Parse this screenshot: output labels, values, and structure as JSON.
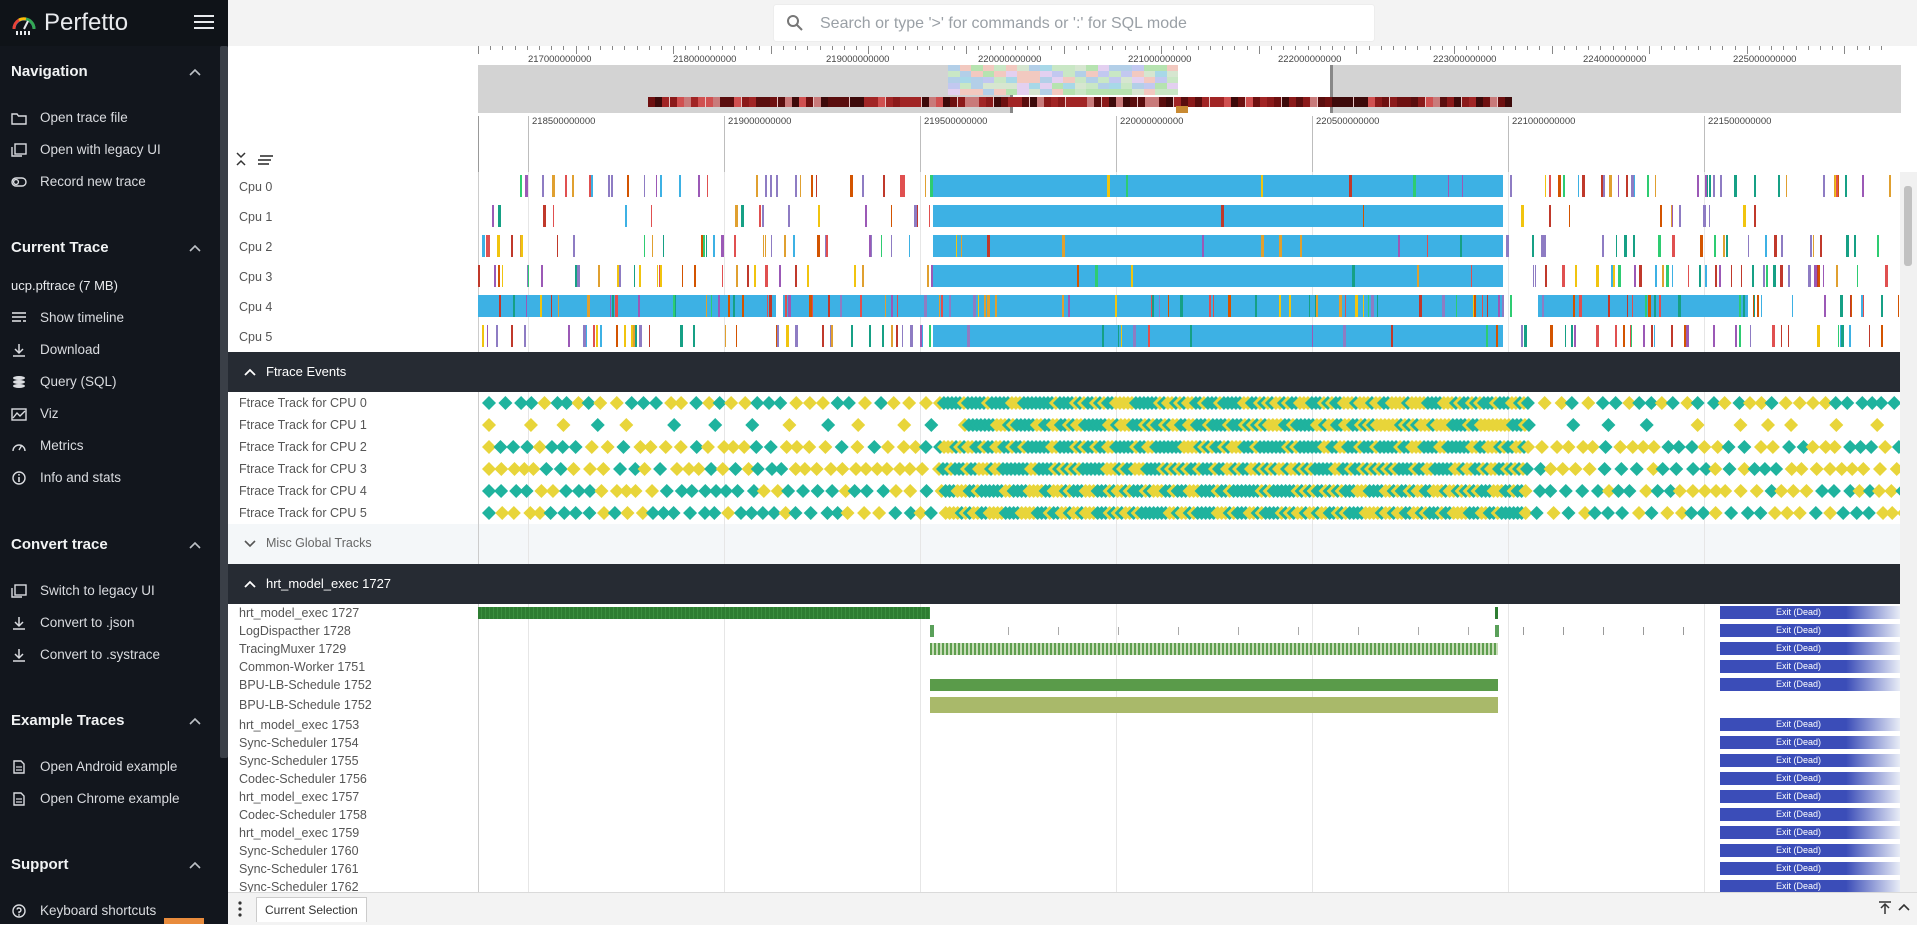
{
  "app": {
    "title": "Perfetto",
    "colors": {
      "sidebar_bg": "#12161d",
      "group_header_bg": "#262b33",
      "cpu_blue": "#3db1e4",
      "ftrace_teal": "#1fb39e",
      "ftrace_yellow": "#e8d53a",
      "thread_green": "#2e7d32",
      "thread_light_green": "#a9b96a",
      "exit_dead": "#3b4db8"
    }
  },
  "sidebar": {
    "sections": [
      {
        "title": "Navigation",
        "items": [
          {
            "label": "Open trace file",
            "icon": "folder-open-icon"
          },
          {
            "label": "Open with legacy UI",
            "icon": "filter-none-icon"
          },
          {
            "label": "Record new trace",
            "icon": "toggle-icon"
          }
        ]
      },
      {
        "title": "Current Trace",
        "trace_name": "ucp.pftrace (7 MB)",
        "items": [
          {
            "label": "Show timeline",
            "icon": "timeline-icon"
          },
          {
            "label": "Download",
            "icon": "download-icon"
          },
          {
            "label": "Query (SQL)",
            "icon": "database-icon"
          },
          {
            "label": "Viz",
            "icon": "chart-icon"
          },
          {
            "label": "Metrics",
            "icon": "speedometer-icon"
          },
          {
            "label": "Info and stats",
            "icon": "info-icon"
          }
        ]
      },
      {
        "title": "Convert trace",
        "items": [
          {
            "label": "Switch to legacy UI",
            "icon": "filter-none-icon"
          },
          {
            "label": "Convert to .json",
            "icon": "download-icon"
          },
          {
            "label": "Convert to .systrace",
            "icon": "download-icon"
          }
        ]
      },
      {
        "title": "Example Traces",
        "items": [
          {
            "label": "Open Android example",
            "icon": "document-icon"
          },
          {
            "label": "Open Chrome example",
            "icon": "document-icon"
          }
        ]
      },
      {
        "title": "Support",
        "items": [
          {
            "label": "Keyboard shortcuts",
            "icon": "help-icon"
          }
        ]
      }
    ]
  },
  "search": {
    "placeholder": "Search or type '>' for commands or ':' for SQL mode",
    "value": ""
  },
  "overview": {
    "ticks": [
      "217000000000",
      "218000000000",
      "219000000000",
      "220000000000",
      "221000000000",
      "222000000000",
      "223000000000",
      "224000000000",
      "225000000000"
    ]
  },
  "time_axis": {
    "ticks": [
      "218500000000",
      "219000000000",
      "219500000000",
      "220000000000",
      "220500000000",
      "221000000000",
      "221500000000"
    ]
  },
  "cpu_tracks": [
    "Cpu 0",
    "Cpu 1",
    "Cpu 2",
    "Cpu 3",
    "Cpu 4",
    "Cpu 5"
  ],
  "ftrace_group": {
    "title": "Ftrace Events",
    "tracks": [
      "Ftrace Track for CPU 0",
      "Ftrace Track for CPU 1",
      "Ftrace Track for CPU 2",
      "Ftrace Track for CPU 3",
      "Ftrace Track for CPU 4",
      "Ftrace Track for CPU 5"
    ]
  },
  "misc_group": {
    "title": "Misc Global Tracks"
  },
  "process_group": {
    "title": "hrt_model_exec 1727",
    "exit_label": "Exit (Dead)",
    "threads": [
      "hrt_model_exec 1727",
      "LogDispacther 1728",
      "TracingMuxer 1729",
      "Common-Worker 1751",
      "BPU-LB-Schedule 1752",
      "BPU-LB-Schedule 1752",
      "hrt_model_exec 1753",
      "Sync-Scheduler 1754",
      "Sync-Scheduler 1755",
      "Codec-Scheduler 1756",
      "hrt_model_exec 1757",
      "Codec-Scheduler 1758",
      "hrt_model_exec 1759",
      "Sync-Scheduler 1760",
      "Sync-Scheduler 1761",
      "Sync-Scheduler 1762"
    ]
  },
  "bottom": {
    "tab_label": "Current Selection"
  }
}
